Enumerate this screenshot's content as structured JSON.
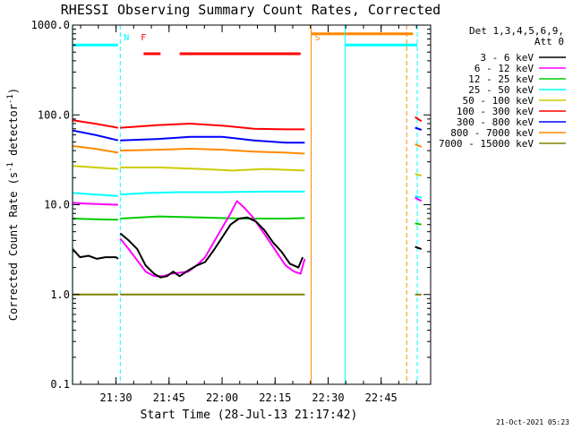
{
  "chart_data": {
    "type": "line",
    "title": "RHESSI Observing Summary Count Rates, Corrected",
    "xlabel": "Start Time (28-Jul-13 21:17:42)",
    "ylabel_prefix": "Corrected Count Rate (s",
    "ylabel_sup": "-1",
    "ylabel_mid": " detector",
    "ylabel_suffix": ")",
    "scale": "log",
    "ylim": [
      0.1,
      1000.0
    ],
    "xlim": [
      21.295,
      22.9833
    ],
    "x_unit": "hours UT",
    "y_ticks": [
      {
        "v": 0.1,
        "label": "0.1"
      },
      {
        "v": 1.0,
        "label": "1.0"
      },
      {
        "v": 10.0,
        "label": "10.0"
      },
      {
        "v": 100.0,
        "label": "100.0"
      },
      {
        "v": 1000.0,
        "label": "1000.0"
      }
    ],
    "x_ticks": [
      {
        "v": 21.5,
        "label": "21:30"
      },
      {
        "v": 21.75,
        "label": "21:45"
      },
      {
        "v": 22.0,
        "label": "22:00"
      },
      {
        "v": 22.25,
        "label": "22:15"
      },
      {
        "v": 22.5,
        "label": "22:30"
      },
      {
        "v": 22.75,
        "label": "22:45"
      }
    ],
    "legend_header": [
      "Det 1,3,4,5,6,9,",
      "Att 0"
    ],
    "legend_placement": "right",
    "series": [
      {
        "name": "3 - 6 keV",
        "color": "#000000",
        "segments": [
          [
            [
              21.296,
              3.2
            ],
            [
              21.33,
              2.6
            ],
            [
              21.37,
              2.7
            ],
            [
              21.41,
              2.5
            ],
            [
              21.45,
              2.6
            ],
            [
              21.5,
              2.6
            ],
            [
              21.51,
              2.5
            ]
          ],
          [
            [
              21.52,
              4.8
            ],
            [
              21.56,
              4.0
            ],
            [
              21.6,
              3.2
            ],
            [
              21.64,
              2.1
            ],
            [
              21.68,
              1.7
            ],
            [
              21.71,
              1.55
            ],
            [
              21.74,
              1.6
            ],
            [
              21.77,
              1.8
            ],
            [
              21.8,
              1.6
            ],
            [
              21.84,
              1.85
            ],
            [
              21.88,
              2.1
            ],
            [
              21.92,
              2.3
            ],
            [
              21.96,
              3.1
            ],
            [
              22.0,
              4.3
            ],
            [
              22.04,
              6.0
            ],
            [
              22.08,
              7.0
            ],
            [
              22.12,
              7.2
            ],
            [
              22.16,
              6.5
            ],
            [
              22.2,
              5.2
            ],
            [
              22.24,
              3.8
            ],
            [
              22.28,
              3.0
            ],
            [
              22.32,
              2.2
            ],
            [
              22.36,
              2.0
            ],
            [
              22.38,
              2.6
            ]
          ],
          [
            [
              22.91,
              3.4
            ],
            [
              22.94,
              3.2
            ]
          ]
        ]
      },
      {
        "name": "6 - 12 keV",
        "color": "#ff00ff",
        "segments": [
          [
            [
              21.296,
              10.5
            ],
            [
              21.35,
              10.3
            ],
            [
              21.4,
              10.2
            ],
            [
              21.45,
              10.1
            ],
            [
              21.5,
              10.0
            ],
            [
              21.51,
              10.0
            ]
          ],
          [
            [
              21.52,
              4.2
            ],
            [
              21.56,
              3.2
            ],
            [
              21.6,
              2.4
            ],
            [
              21.64,
              1.8
            ],
            [
              21.68,
              1.6
            ],
            [
              21.72,
              1.6
            ],
            [
              21.76,
              1.7
            ],
            [
              21.8,
              1.75
            ],
            [
              21.84,
              1.8
            ],
            [
              21.88,
              2.1
            ],
            [
              21.92,
              2.6
            ],
            [
              21.96,
              3.8
            ],
            [
              22.0,
              5.5
            ],
            [
              22.04,
              8.0
            ],
            [
              22.07,
              11.0
            ],
            [
              22.1,
              9.5
            ],
            [
              22.14,
              7.5
            ],
            [
              22.18,
              5.5
            ],
            [
              22.22,
              4.0
            ],
            [
              22.26,
              2.9
            ],
            [
              22.3,
              2.1
            ],
            [
              22.34,
              1.8
            ],
            [
              22.37,
              1.7
            ],
            [
              22.39,
              2.5
            ]
          ],
          [
            [
              22.91,
              12.0
            ],
            [
              22.94,
              11.0
            ]
          ]
        ]
      },
      {
        "name": "12 - 25 keV",
        "color": "#00cc00",
        "segments": [
          [
            [
              21.296,
              7.0
            ],
            [
              21.4,
              6.9
            ],
            [
              21.51,
              6.8
            ]
          ],
          [
            [
              21.52,
              7.0
            ],
            [
              21.7,
              7.4
            ],
            [
              21.9,
              7.2
            ],
            [
              22.1,
              7.0
            ],
            [
              22.3,
              7.0
            ],
            [
              22.39,
              7.1
            ]
          ],
          [
            [
              22.91,
              6.2
            ],
            [
              22.94,
              6.0
            ]
          ]
        ]
      },
      {
        "name": "25 - 50 keV",
        "color": "#00ffff",
        "segments": [
          [
            [
              21.296,
              13.5
            ],
            [
              21.4,
              13.0
            ],
            [
              21.51,
              12.5
            ]
          ],
          [
            [
              21.52,
              13.0
            ],
            [
              21.65,
              13.5
            ],
            [
              21.8,
              13.8
            ],
            [
              22.0,
              13.8
            ],
            [
              22.2,
              14.0
            ],
            [
              22.39,
              14.0
            ]
          ],
          [
            [
              22.91,
              12.5
            ],
            [
              22.94,
              12.0
            ]
          ]
        ]
      },
      {
        "name": "50 - 100 keV",
        "color": "#cccc00",
        "segments": [
          [
            [
              21.296,
              27
            ],
            [
              21.4,
              26
            ],
            [
              21.51,
              25
            ]
          ],
          [
            [
              21.52,
              26
            ],
            [
              21.7,
              26
            ],
            [
              21.9,
              25
            ],
            [
              22.05,
              24
            ],
            [
              22.2,
              25
            ],
            [
              22.39,
              24
            ]
          ],
          [
            [
              22.91,
              22
            ],
            [
              22.94,
              21
            ]
          ]
        ]
      },
      {
        "name": "100 - 300 keV",
        "color": "#ff0000",
        "segments": [
          [
            [
              21.296,
              87
            ],
            [
              21.4,
              80
            ],
            [
              21.51,
              72
            ]
          ],
          [
            [
              21.52,
              72
            ],
            [
              21.7,
              77
            ],
            [
              21.85,
              80
            ],
            [
              22.0,
              76
            ],
            [
              22.15,
              70
            ],
            [
              22.3,
              69
            ],
            [
              22.39,
              69
            ]
          ],
          [
            [
              22.91,
              95
            ],
            [
              22.94,
              85
            ]
          ]
        ]
      },
      {
        "name": "300 - 800 keV",
        "color": "#0000ff",
        "segments": [
          [
            [
              21.296,
              67
            ],
            [
              21.4,
              60
            ],
            [
              21.51,
              52
            ]
          ],
          [
            [
              21.52,
              52
            ],
            [
              21.7,
              54
            ],
            [
              21.85,
              57
            ],
            [
              22.0,
              57
            ],
            [
              22.15,
              52
            ],
            [
              22.3,
              49
            ],
            [
              22.39,
              49
            ]
          ],
          [
            [
              22.91,
              72
            ],
            [
              22.94,
              68
            ]
          ]
        ]
      },
      {
        "name": "800 - 7000 keV",
        "color": "#ff8800",
        "segments": [
          [
            [
              21.296,
              45
            ],
            [
              21.4,
              42
            ],
            [
              21.51,
              38
            ]
          ],
          [
            [
              21.52,
              40
            ],
            [
              21.7,
              41
            ],
            [
              21.85,
              42
            ],
            [
              22.0,
              41
            ],
            [
              22.15,
              39
            ],
            [
              22.3,
              38
            ],
            [
              22.39,
              37
            ]
          ],
          [
            [
              22.91,
              47
            ],
            [
              22.94,
              44
            ]
          ]
        ]
      },
      {
        "name": "7000 - 15000 keV",
        "color": "#808000",
        "segments": [
          [
            [
              21.296,
              1.0
            ],
            [
              21.51,
              1.0
            ]
          ],
          [
            [
              21.52,
              1.0
            ],
            [
              21.95,
              1.0
            ],
            [
              22.39,
              1.0
            ]
          ],
          [
            [
              22.91,
              1.0
            ],
            [
              22.94,
              1.0
            ]
          ]
        ]
      }
    ],
    "annotations": [
      {
        "label": "N",
        "color": "#00ffff",
        "x": 21.52
      },
      {
        "label": "F",
        "color": "#ff0000",
        "x": 21.6
      },
      {
        "label": "S",
        "color": "#ff8800",
        "x": 22.42
      }
    ],
    "flag_bars": [
      {
        "color": "#00ffff",
        "x": [
          21.296,
          21.51
        ],
        "y": 600
      },
      {
        "color": "#ff0000",
        "x": [
          21.63,
          21.71
        ],
        "y": 480
      },
      {
        "color": "#ff0000",
        "x": [
          21.8,
          22.37
        ],
        "y": 480
      },
      {
        "color": "#ff8800",
        "x": [
          22.42,
          22.9
        ],
        "y": 800
      },
      {
        "color": "#00ffff",
        "x": [
          22.58,
          22.92
        ],
        "y": 600
      }
    ],
    "vertical_markers": [
      {
        "color": "#00ffff",
        "style": "solid",
        "x": 21.296
      },
      {
        "color": "#00ffff",
        "style": "dashed",
        "x": 21.52
      },
      {
        "color": "#ff8800",
        "style": "solid",
        "x": 22.42
      },
      {
        "color": "#00ffff",
        "style": "solid",
        "x": 22.58
      },
      {
        "color": "#ff8800",
        "style": "dashed",
        "x": 22.87
      },
      {
        "color": "#00ffff",
        "style": "dashed",
        "x": 22.92
      }
    ],
    "footer": "21-Oct-2021 05:23"
  }
}
